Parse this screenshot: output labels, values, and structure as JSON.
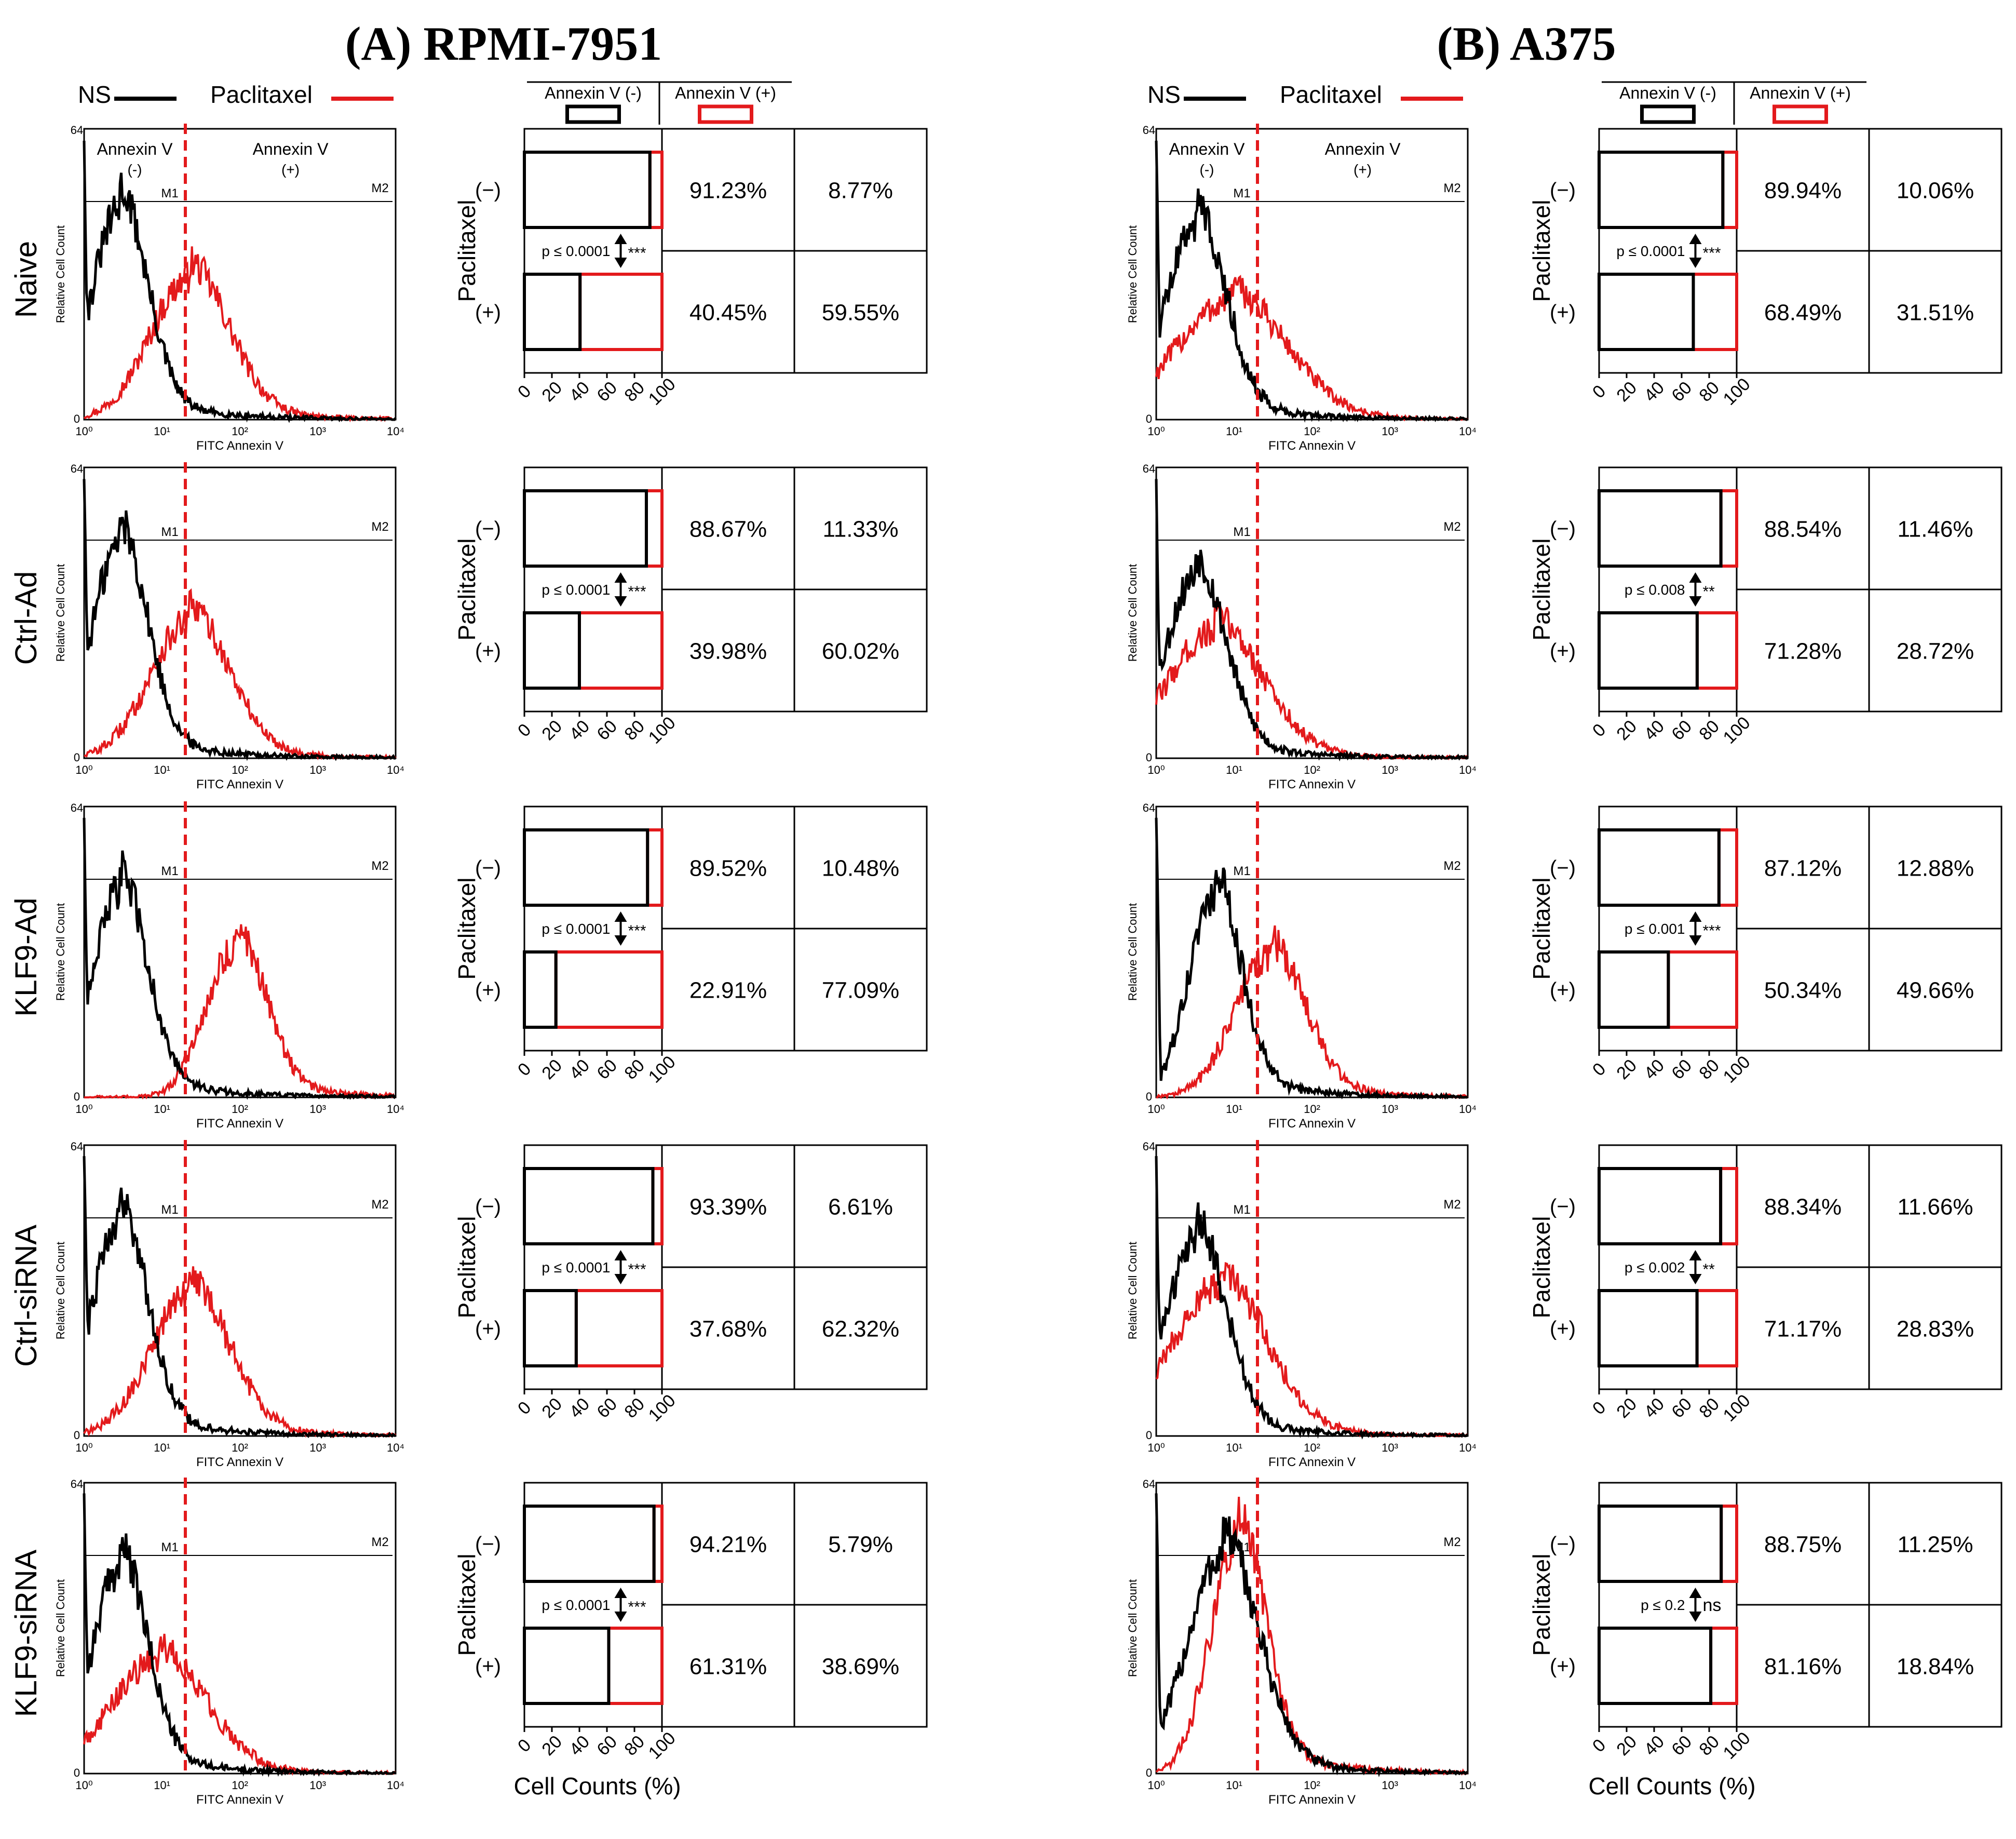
{
  "colors": {
    "ns": "#000000",
    "paclitaxel": "#e31a1c",
    "axis": "#000000",
    "text": "#000000"
  },
  "legend": {
    "ns_label": "NS",
    "paclitaxel_label": "Paclitaxel"
  },
  "table_headers": {
    "neg": "Annexin V (-)",
    "pos": "Annexin V (+)"
  },
  "histogram_labels": {
    "ylabel": "Relative Cell Count",
    "xlabel": "FITC Annexin V",
    "y_top": "64",
    "y_bottom": "0",
    "x_ticks": [
      "10⁰",
      "10¹",
      "10²",
      "10³",
      "10⁴"
    ],
    "m1": "M1",
    "m2": "M2",
    "annexin_neg": [
      "Annexin V",
      "(-)"
    ],
    "annexin_pos": [
      "Annexin V",
      "(+)"
    ]
  },
  "bar_labels": {
    "ylabel": "Paclitaxel",
    "row_neg": "(−)",
    "row_pos": "(+)",
    "x_ticks": [
      "0",
      "20",
      "40",
      "60",
      "80",
      "100"
    ],
    "xlabel": "Cell Counts (%)"
  },
  "panels": [
    {
      "title": "(A) RPMI-7951"
    },
    {
      "title": "(B) A375"
    }
  ],
  "rows": [
    "Naive",
    "Ctrl-Ad",
    "KLF9-Ad",
    "Ctrl-siRNA",
    "KLF9-siRNA"
  ],
  "chart_data": [
    {
      "type": "bar",
      "panel": "(A) RPMI-7951",
      "series": [
        "Annexin V (-)",
        "Annexin V (+)"
      ],
      "conditions": [
        {
          "name": "Naive",
          "ptx_neg": [
            91.23,
            8.77
          ],
          "ptx_pos": [
            40.45,
            59.55
          ],
          "p_text": "p ≤ 0.0001",
          "sig": "***",
          "neg_text": [
            "91.23%",
            "8.77%"
          ],
          "pos_text": [
            "40.45%",
            "59.55%"
          ]
        },
        {
          "name": "Ctrl-Ad",
          "ptx_neg": [
            88.67,
            11.33
          ],
          "ptx_pos": [
            39.98,
            60.02
          ],
          "p_text": "p ≤ 0.0001",
          "sig": "***",
          "neg_text": [
            "88.67%",
            "11.33%"
          ],
          "pos_text": [
            "39.98%",
            "60.02%"
          ]
        },
        {
          "name": "KLF9-Ad",
          "ptx_neg": [
            89.52,
            10.48
          ],
          "ptx_pos": [
            22.91,
            77.09
          ],
          "p_text": "p ≤ 0.0001",
          "sig": "***",
          "neg_text": [
            "89.52%",
            "10.48%"
          ],
          "pos_text": [
            "22.91%",
            "77.09%"
          ]
        },
        {
          "name": "Ctrl-siRNA",
          "ptx_neg": [
            93.39,
            6.61
          ],
          "ptx_pos": [
            37.68,
            62.32
          ],
          "p_text": "p ≤ 0.0001",
          "sig": "***",
          "neg_text": [
            "93.39%",
            "6.61%"
          ],
          "pos_text": [
            "37.68%",
            "62.32%"
          ]
        },
        {
          "name": "KLF9-siRNA",
          "ptx_neg": [
            94.21,
            5.79
          ],
          "ptx_pos": [
            61.31,
            38.69
          ],
          "p_text": "p ≤ 0.0001",
          "sig": "***",
          "neg_text": [
            "94.21%",
            "5.79%"
          ],
          "pos_text": [
            "61.31%",
            "38.69%"
          ]
        }
      ]
    },
    {
      "type": "bar",
      "panel": "(B) A375",
      "series": [
        "Annexin V (-)",
        "Annexin V (+)"
      ],
      "conditions": [
        {
          "name": "Naive",
          "ptx_neg": [
            89.94,
            10.06
          ],
          "ptx_pos": [
            68.49,
            31.51
          ],
          "p_text": "p ≤ 0.0001",
          "sig": "***",
          "neg_text": [
            "89.94%",
            "10.06%"
          ],
          "pos_text": [
            "68.49%",
            "31.51%"
          ]
        },
        {
          "name": "Ctrl-Ad",
          "ptx_neg": [
            88.54,
            11.46
          ],
          "ptx_pos": [
            71.28,
            28.72
          ],
          "p_text": "p ≤ 0.008",
          "sig": "**",
          "neg_text": [
            "88.54%",
            "11.46%"
          ],
          "pos_text": [
            "71.28%",
            "28.72%"
          ]
        },
        {
          "name": "KLF9-Ad",
          "ptx_neg": [
            87.12,
            12.88
          ],
          "ptx_pos": [
            50.34,
            49.66
          ],
          "p_text": "p ≤ 0.001",
          "sig": "***",
          "neg_text": [
            "87.12%",
            "12.88%"
          ],
          "pos_text": [
            "50.34%",
            "49.66%"
          ]
        },
        {
          "name": "Ctrl-siRNA",
          "ptx_neg": [
            88.34,
            11.66
          ],
          "ptx_pos": [
            71.17,
            28.83
          ],
          "p_text": "p ≤ 0.002",
          "sig": "**",
          "neg_text": [
            "88.34%",
            "11.66%"
          ],
          "pos_text": [
            "71.17%",
            "28.83%"
          ]
        },
        {
          "name": "KLF9-siRNA",
          "ptx_neg": [
            88.75,
            11.25
          ],
          "ptx_pos": [
            81.16,
            18.84
          ],
          "p_text": "p ≤ 0.2",
          "sig": "ns",
          "neg_text": [
            "88.75%",
            "11.25%"
          ],
          "pos_text": [
            "81.16%",
            "18.84%"
          ]
        }
      ]
    },
    {
      "type": "line",
      "panel": "(A) RPMI-7951",
      "description": "Annexin V flow-cytometry histograms (log scale 10^0–10^4, count 0–64)",
      "marker_gate_log": 1.3,
      "ylim": [
        0,
        64
      ],
      "xlim_log": [
        0,
        4
      ],
      "curves": [
        {
          "name": "Naive",
          "ns": {
            "peak_log": 0.45,
            "height": 46,
            "width": 0.35
          },
          "ptx": {
            "peak_log": 1.35,
            "height": 31,
            "width": 0.5
          }
        },
        {
          "name": "Ctrl-Ad",
          "ns": {
            "peak_log": 0.45,
            "height": 47,
            "width": 0.35
          },
          "ptx": {
            "peak_log": 1.35,
            "height": 30,
            "width": 0.5
          }
        },
        {
          "name": "KLF9-Ad",
          "ns": {
            "peak_log": 0.45,
            "height": 45,
            "width": 0.35
          },
          "ptx": {
            "peak_log": 1.95,
            "height": 33,
            "width": 0.38
          }
        },
        {
          "name": "Ctrl-siRNA",
          "ns": {
            "peak_log": 0.45,
            "height": 47,
            "width": 0.35
          },
          "ptx": {
            "peak_log": 1.35,
            "height": 31,
            "width": 0.5
          }
        },
        {
          "name": "KLF9-siRNA",
          "ns": {
            "peak_log": 0.45,
            "height": 45,
            "width": 0.35
          },
          "ptx": {
            "peak_log": 0.95,
            "height": 25,
            "width": 0.6
          }
        }
      ]
    },
    {
      "type": "line",
      "panel": "(B) A375",
      "description": "Annexin V flow-cytometry histograms (log scale 10^0–10^4, count 0–64)",
      "marker_gate_log": 1.3,
      "ylim": [
        0,
        64
      ],
      "xlim_log": [
        0,
        4
      ],
      "curves": [
        {
          "name": "Naive",
          "ns": {
            "peak_log": 0.5,
            "height": 43,
            "width": 0.38
          },
          "ptx": {
            "peak_log": 0.95,
            "height": 26,
            "width": 0.7
          }
        },
        {
          "name": "Ctrl-Ad",
          "ns": {
            "peak_log": 0.5,
            "height": 40,
            "width": 0.38
          },
          "ptx": {
            "peak_log": 0.75,
            "height": 28,
            "width": 0.6
          }
        },
        {
          "name": "KLF9-Ad",
          "ns": {
            "peak_log": 0.75,
            "height": 44,
            "width": 0.33
          },
          "ptx": {
            "peak_log": 1.45,
            "height": 31,
            "width": 0.45
          }
        },
        {
          "name": "Ctrl-siRNA",
          "ns": {
            "peak_log": 0.5,
            "height": 43,
            "width": 0.38
          },
          "ptx": {
            "peak_log": 0.8,
            "height": 33,
            "width": 0.6
          }
        },
        {
          "name": "KLF9-siRNA",
          "ns": {
            "peak_log": 0.85,
            "height": 48,
            "width": 0.45
          },
          "ptx": {
            "peak_log": 1.05,
            "height": 52,
            "width": 0.35
          }
        }
      ]
    }
  ]
}
